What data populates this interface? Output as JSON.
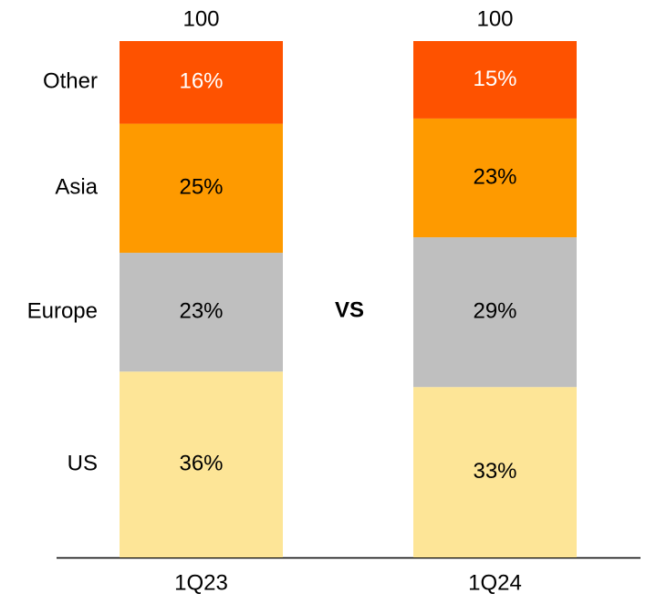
{
  "chart_data": {
    "type": "stacked_bar",
    "categories": [
      "1Q23",
      "1Q24"
    ],
    "totals": [
      100,
      100
    ],
    "series": [
      {
        "name": "US",
        "color": "#fde597",
        "label_color": "#000000",
        "values": [
          36,
          33
        ],
        "value_labels": [
          "36%",
          "33%"
        ]
      },
      {
        "name": "Europe",
        "color": "#bfbfbf",
        "label_color": "#000000",
        "values": [
          23,
          29
        ],
        "value_labels": [
          "23%",
          "29%"
        ]
      },
      {
        "name": "Asia",
        "color": "#fe9a00",
        "label_color": "#000000",
        "values": [
          25,
          23
        ],
        "value_labels": [
          "25%",
          "23%"
        ]
      },
      {
        "name": "Other",
        "color": "#fe5200",
        "label_color": "#ffffff",
        "values": [
          16,
          15
        ],
        "value_labels": [
          "16%",
          "15%"
        ]
      }
    ],
    "annotation": "VS",
    "ylim": [
      0,
      100
    ]
  }
}
